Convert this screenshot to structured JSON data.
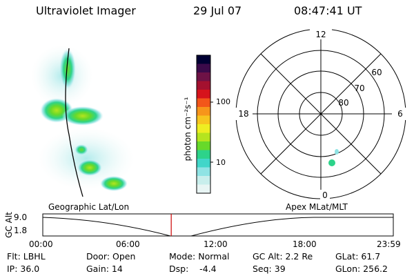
{
  "header": {
    "instrument": "Ultraviolet Imager",
    "date": "29 Jul 07",
    "time": "08:47:41 UT"
  },
  "image_panel": {
    "label": "Geographic Lat/Lon"
  },
  "colorbar": {
    "unit_label": "photon cm⁻²s⁻¹",
    "scale": "log",
    "ticks": [
      "100",
      "10"
    ],
    "colors": [
      "#000033",
      "#3b0a4a",
      "#6e1246",
      "#a4112f",
      "#d6131c",
      "#f2561a",
      "#f7951b",
      "#f7c51f",
      "#eeee22",
      "#b5e41f",
      "#67d92a",
      "#2dd38a",
      "#41d6c9",
      "#8fe3e4",
      "#c8eeec",
      "#e8f5f4"
    ]
  },
  "polar_plot": {
    "label": "Apex MLat/MLT",
    "mlt_labels": {
      "top": "12",
      "left": "18",
      "right": "6",
      "bottom": "0"
    },
    "lat_labels": [
      "60",
      "70",
      "80"
    ]
  },
  "timeline": {
    "axis_label": "GC Alt",
    "y_ticks": [
      "9.0",
      "1.8"
    ],
    "x_ticks": [
      "00:00",
      "06:00",
      "12:00",
      "18:00",
      "23:59"
    ],
    "marker_time": "08:47:41",
    "marker_color": "#cc0000"
  },
  "info": {
    "flt": "Flt: LBHL",
    "door": "Door: Open",
    "mode": "Mode: Normal",
    "gc_alt": "GC Alt: 2.2 Re",
    "glat": "GLat: 61.7",
    "ip": "IP: 36.0",
    "gain": "Gain: 14",
    "dsp": "Dsp:    -4.4",
    "seq": "Seq: 39",
    "glon": "GLon: 256.2"
  }
}
